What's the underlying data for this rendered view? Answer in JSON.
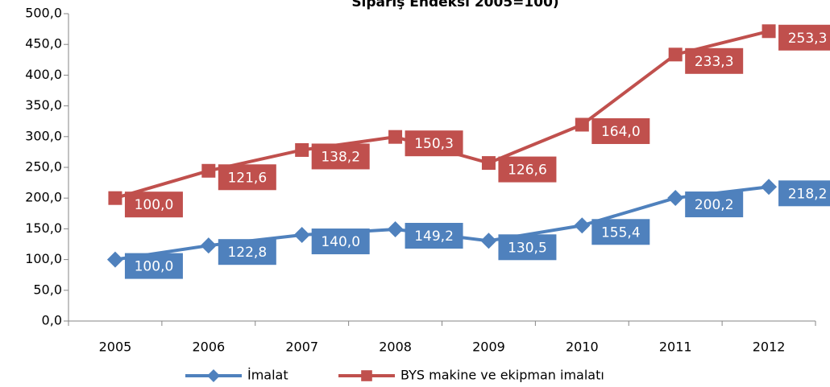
{
  "chart_data": {
    "type": "line",
    "stacked": true,
    "title": "Sipariş Endeksi 2005=100)",
    "categories": [
      "2005",
      "2006",
      "2007",
      "2008",
      "2009",
      "2010",
      "2011",
      "2012"
    ],
    "series": [
      {
        "name": "İmalat",
        "color": "#4f81bd",
        "marker": "diamond",
        "values": [
          100,
          122.8,
          140,
          149.2,
          130.5,
          155.4,
          200.2,
          218.2
        ],
        "value_labels": [
          "100,0",
          "122,8",
          "140,0",
          "149,2",
          "130,5",
          "155,4",
          "200,2",
          "218,2"
        ]
      },
      {
        "name": "BYS makine ve ekipman imalatı",
        "color": "#c0504d",
        "marker": "square",
        "values": [
          100,
          121.6,
          138.2,
          150.3,
          126.6,
          164,
          233.3,
          253.3
        ],
        "value_labels": [
          "100,0",
          "121,6",
          "138,2",
          "150,3",
          "126,6",
          "164,0",
          "233,3",
          "253,3"
        ]
      }
    ],
    "ylim": [
      0,
      500
    ],
    "yticks": [
      {
        "value": 0,
        "label": "0,0"
      },
      {
        "value": 50,
        "label": "50,0"
      },
      {
        "value": 100,
        "label": "100,0"
      },
      {
        "value": 150,
        "label": "150,0"
      },
      {
        "value": 200,
        "label": "200,0"
      },
      {
        "value": 250,
        "label": "250,0"
      },
      {
        "value": 300,
        "label": "300,0"
      },
      {
        "value": 350,
        "label": "350,0"
      },
      {
        "value": 400,
        "label": "400,0"
      },
      {
        "value": 450,
        "label": "450,0"
      },
      {
        "value": 500,
        "label": "500,0"
      }
    ],
    "legend": "bottom"
  }
}
